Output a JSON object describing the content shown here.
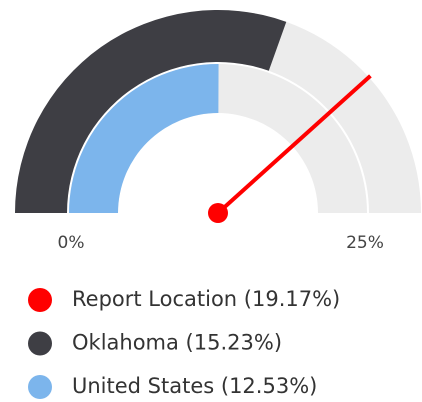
{
  "chart_data": {
    "type": "gauge",
    "ylim": [
      0,
      25
    ],
    "yticks": [
      {
        "value": 0,
        "label": "0%"
      },
      {
        "value": 25,
        "label": "25%"
      }
    ],
    "series": [
      {
        "name": "Report Location (19.17%)",
        "color": "#ff0000",
        "values": [
          19.17
        ]
      },
      {
        "name": "Oklahoma (15.23%)",
        "color": "#3e3e44",
        "values": [
          15.23
        ]
      },
      {
        "name": "United States (12.53%)",
        "color": "#7cb5ec",
        "values": [
          12.53
        ]
      }
    ]
  }
}
